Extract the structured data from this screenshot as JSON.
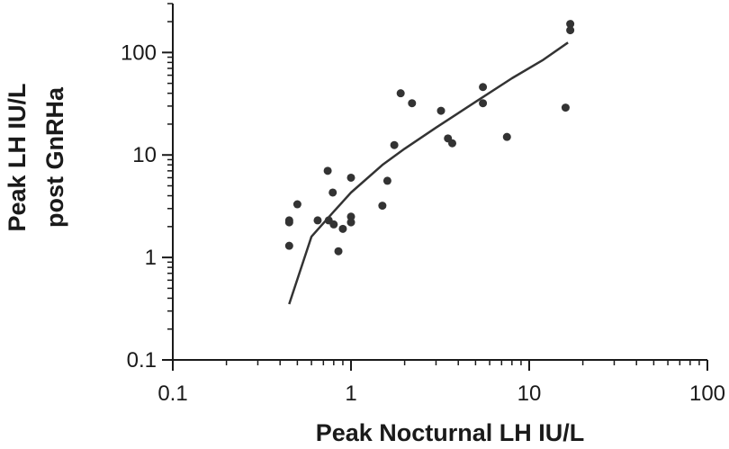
{
  "chart_data": {
    "type": "scatter",
    "title": "",
    "xlabel": "Peak Nocturnal LH IU/L",
    "ylabel_lines": [
      "Peak LH IU/L",
      "post GnRHa"
    ],
    "x_scale": "log",
    "y_scale": "log",
    "xlim": [
      0.1,
      100
    ],
    "ylim": [
      0.1,
      300
    ],
    "x_ticks": [
      0.1,
      1,
      10,
      100
    ],
    "x_tick_labels": [
      "0.1",
      "1",
      "10",
      "100"
    ],
    "y_ticks": [
      0.1,
      1,
      10,
      100
    ],
    "y_tick_labels": [
      "0.1",
      "1",
      "10",
      "100"
    ],
    "grid": false,
    "legend": "none",
    "colors": {
      "points": "#333333",
      "line": "#333333",
      "axis": "#1a1a1a"
    },
    "points": [
      {
        "x": 0.45,
        "y": 2.3
      },
      {
        "x": 0.45,
        "y": 2.2
      },
      {
        "x": 0.45,
        "y": 1.3
      },
      {
        "x": 0.5,
        "y": 3.3
      },
      {
        "x": 0.65,
        "y": 2.3
      },
      {
        "x": 0.74,
        "y": 7.0
      },
      {
        "x": 0.75,
        "y": 2.3
      },
      {
        "x": 0.79,
        "y": 4.3
      },
      {
        "x": 0.8,
        "y": 2.1
      },
      {
        "x": 0.85,
        "y": 1.15
      },
      {
        "x": 0.9,
        "y": 1.9
      },
      {
        "x": 1.0,
        "y": 6.0
      },
      {
        "x": 1.0,
        "y": 2.5
      },
      {
        "x": 1.0,
        "y": 2.2
      },
      {
        "x": 1.5,
        "y": 3.2
      },
      {
        "x": 1.6,
        "y": 5.6
      },
      {
        "x": 1.75,
        "y": 12.5
      },
      {
        "x": 1.9,
        "y": 40
      },
      {
        "x": 2.2,
        "y": 32
      },
      {
        "x": 3.2,
        "y": 27
      },
      {
        "x": 3.5,
        "y": 14.5
      },
      {
        "x": 3.7,
        "y": 13
      },
      {
        "x": 5.5,
        "y": 46
      },
      {
        "x": 5.5,
        "y": 32
      },
      {
        "x": 7.5,
        "y": 15
      },
      {
        "x": 16,
        "y": 29
      },
      {
        "x": 17,
        "y": 190
      },
      {
        "x": 17,
        "y": 165
      }
    ],
    "fit_line": [
      {
        "x": 0.45,
        "y": 0.35
      },
      {
        "x": 0.6,
        "y": 1.6
      },
      {
        "x": 0.8,
        "y": 2.8
      },
      {
        "x": 1.0,
        "y": 4.3
      },
      {
        "x": 1.5,
        "y": 8.0
      },
      {
        "x": 2.0,
        "y": 11.5
      },
      {
        "x": 3.0,
        "y": 18.5
      },
      {
        "x": 5.0,
        "y": 33
      },
      {
        "x": 8.0,
        "y": 56
      },
      {
        "x": 12.0,
        "y": 85
      },
      {
        "x": 16.5,
        "y": 125
      }
    ]
  }
}
